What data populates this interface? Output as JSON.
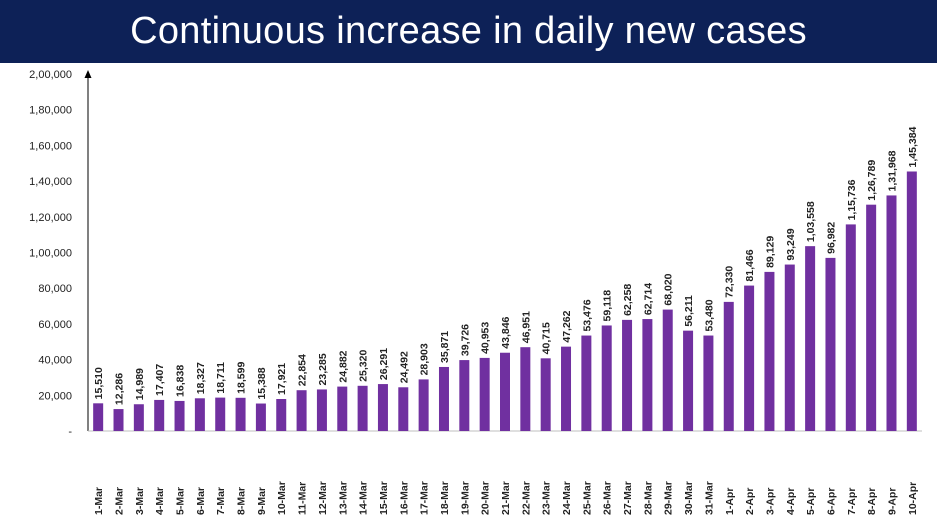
{
  "slide": {
    "title": "Continuous increase in daily new cases"
  },
  "chart_data": {
    "type": "bar",
    "title": "Continuous increase in daily new cases",
    "xlabel": "",
    "ylabel": "",
    "ylim": [
      0,
      200000
    ],
    "grid": false,
    "bar_color": "#7030a0",
    "y_ticks": [
      "-",
      "20,000",
      "40,000",
      "60,000",
      "80,000",
      "1,00,000",
      "1,20,000",
      "1,40,000",
      "1,60,000",
      "1,80,000",
      "2,00,000"
    ],
    "categories": [
      "1-Mar",
      "2-Mar",
      "3-Mar",
      "4-Mar",
      "5-Mar",
      "6-Mar",
      "7-Mar",
      "8-Mar",
      "9-Mar",
      "10-Mar",
      "11-Mar",
      "12-Mar",
      "13-Mar",
      "14-Mar",
      "15-Mar",
      "16-Mar",
      "17-Mar",
      "18-Mar",
      "19-Mar",
      "20-Mar",
      "21-Mar",
      "22-Mar",
      "23-Mar",
      "24-Mar",
      "25-Mar",
      "26-Mar",
      "27-Mar",
      "28-Mar",
      "29-Mar",
      "30-Mar",
      "31-Mar",
      "1-Apr",
      "2-Apr",
      "3-Apr",
      "4-Apr",
      "5-Apr",
      "6-Apr",
      "7-Apr",
      "8-Apr",
      "9-Apr",
      "10-Apr"
    ],
    "values": [
      15510,
      12286,
      14989,
      17407,
      16838,
      18327,
      18711,
      18599,
      15388,
      17921,
      22854,
      23285,
      24882,
      25320,
      26291,
      24492,
      28903,
      35871,
      39726,
      40953,
      43846,
      46951,
      40715,
      47262,
      53476,
      59118,
      62258,
      62714,
      68020,
      56211,
      53480,
      72330,
      81466,
      89129,
      93249,
      103558,
      96982,
      115736,
      126789,
      131968,
      145384
    ],
    "data_labels": [
      "15,510",
      "12,286",
      "14,989",
      "17,407",
      "16,838",
      "18,327",
      "18,711",
      "18,599",
      "15,388",
      "17,921",
      "22,854",
      "23,285",
      "24,882",
      "25,320",
      "26,291",
      "24,492",
      "28,903",
      "35,871",
      "39,726",
      "40,953",
      "43,846",
      "46,951",
      "40,715",
      "47,262",
      "53,476",
      "59,118",
      "62,258",
      "62,714",
      "68,020",
      "56,211",
      "53,480",
      "72,330",
      "81,466",
      "89,129",
      "93,249",
      "1,03,558",
      "96,982",
      "1,15,736",
      "1,26,789",
      "1,31,968",
      "1,45,384"
    ]
  }
}
